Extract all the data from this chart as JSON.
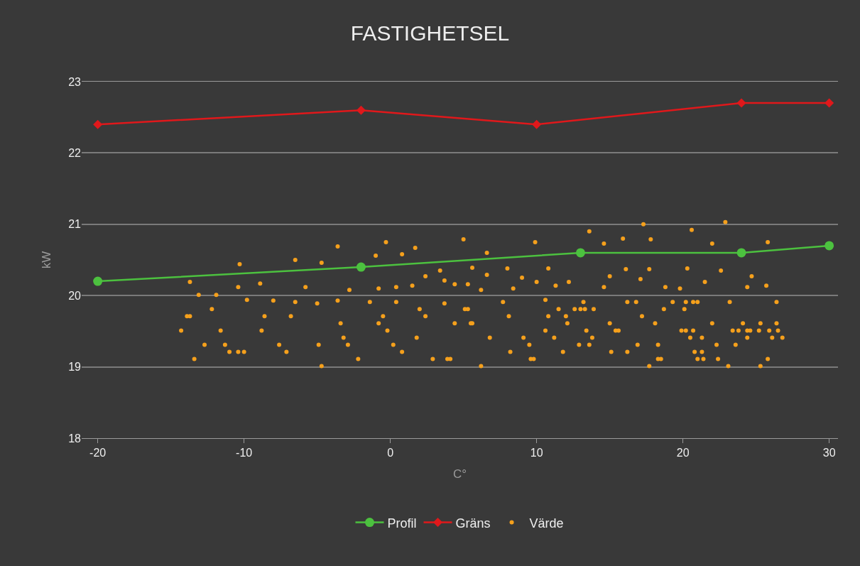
{
  "chart_data": {
    "type": "line",
    "title": "FASTIGHETSEL",
    "xlabel": "C°",
    "ylabel": "kW",
    "xlim": [
      -21.1,
      30.6
    ],
    "xticks": [
      -20,
      -10,
      0,
      10,
      20,
      30
    ],
    "ylim": [
      18,
      23
    ],
    "yticks": [
      18,
      19,
      20,
      21,
      22,
      23
    ],
    "grid": "y",
    "legend": "bottom",
    "series": [
      {
        "name": "Profil",
        "color": "#4cc13f",
        "marker": "circle",
        "x": [
          -20,
          -2,
          13,
          24,
          30
        ],
        "values": [
          20.2,
          20.4,
          20.6,
          20.6,
          20.7
        ]
      },
      {
        "name": "Gräns",
        "color": "#e0181b",
        "marker": "diamond",
        "x": [
          -20,
          -2,
          10,
          24,
          30
        ],
        "values": [
          22.4,
          22.6,
          22.4,
          22.7,
          22.7
        ]
      },
      {
        "name": "Värde",
        "type": "scatter",
        "color": "#f5a01c",
        "marker": "circle",
        "x": [
          -6.5,
          -4.7,
          -10.3,
          -13.7,
          -10.4,
          -8.9,
          -5.8,
          -13.1,
          -11.9,
          -9.8,
          -8.0,
          -6.5,
          -5.0,
          -12.2,
          -13.9,
          -13.7,
          -8.6,
          -6.8,
          -14.3,
          -11.6,
          -8.8,
          -12.7,
          -11.3,
          -7.6,
          -4.9,
          -11.0,
          -10.4,
          -10.0,
          -7.1,
          -13.4,
          -4.7,
          -3.6,
          -0.3,
          5.0,
          -1.0,
          0.8,
          1.7,
          6.6,
          3.4,
          5.6,
          6.6,
          2.4,
          3.7,
          4.4,
          5.3,
          6.2,
          -2.8,
          -0.8,
          0.4,
          1.5,
          -3.6,
          -1.4,
          0.4,
          3.7,
          2.0,
          5.1,
          5.3,
          -0.5,
          2.4,
          -3.4,
          -0.8,
          4.4,
          5.5,
          5.6,
          -0.2,
          -3.2,
          1.8,
          6.8,
          -2.9,
          0.2,
          0.8,
          -2.2,
          2.9,
          3.9,
          4.1,
          6.2,
          9.9,
          13.6,
          14.6,
          15.9,
          17.3,
          8.0,
          10.8,
          9.0,
          10.0,
          11.3,
          12.2,
          14.6,
          15.0,
          16.1,
          17.1,
          8.4,
          7.7,
          10.6,
          13.2,
          16.2,
          16.8,
          11.5,
          12.6,
          13.0,
          13.3,
          13.9,
          8.1,
          10.8,
          12.0,
          17.2,
          12.1,
          15.0,
          10.6,
          13.4,
          15.4,
          15.6,
          9.1,
          11.2,
          13.8,
          9.5,
          12.9,
          13.6,
          16.9,
          8.2,
          11.8,
          15.1,
          16.2,
          9.6,
          9.8,
          22.9,
          20.6,
          17.8,
          22.0,
          25.8,
          17.7,
          20.3,
          22.6,
          24.7,
          21.5,
          18.8,
          19.8,
          24.4,
          25.7,
          19.3,
          20.2,
          20.7,
          21.0,
          23.2,
          26.4,
          18.7,
          20.1,
          18.1,
          22.0,
          24.1,
          25.3,
          26.4,
          19.9,
          20.2,
          20.7,
          23.4,
          23.8,
          24.4,
          24.6,
          25.2,
          25.9,
          26.5,
          20.5,
          21.3,
          24.4,
          26.1,
          26.8,
          18.3,
          22.3,
          23.6,
          20.8,
          21.3,
          18.3,
          18.5,
          21.0,
          21.4,
          22.4,
          25.8,
          17.7,
          23.1,
          25.3
        ],
        "values": [
          20.5,
          20.46,
          20.44,
          20.19,
          20.12,
          20.17,
          20.12,
          20.01,
          20.01,
          19.94,
          19.93,
          19.91,
          19.89,
          19.81,
          19.71,
          19.71,
          19.71,
          19.71,
          19.51,
          19.51,
          19.51,
          19.31,
          19.31,
          19.31,
          19.31,
          19.21,
          19.21,
          19.21,
          19.21,
          19.11,
          19.01,
          20.69,
          20.75,
          20.79,
          20.56,
          20.58,
          20.67,
          20.6,
          20.35,
          20.39,
          20.29,
          20.27,
          20.21,
          20.16,
          20.16,
          20.08,
          20.08,
          20.1,
          20.12,
          20.14,
          19.93,
          19.91,
          19.91,
          19.89,
          19.81,
          19.81,
          19.81,
          19.71,
          19.71,
          19.61,
          19.61,
          19.61,
          19.61,
          19.61,
          19.51,
          19.41,
          19.41,
          19.41,
          19.31,
          19.31,
          19.21,
          19.11,
          19.11,
          19.11,
          19.11,
          19.01,
          20.75,
          20.9,
          20.73,
          20.8,
          21.0,
          20.38,
          20.38,
          20.25,
          20.19,
          20.14,
          20.19,
          20.12,
          20.27,
          20.37,
          20.23,
          20.1,
          19.91,
          19.94,
          19.91,
          19.91,
          19.91,
          19.81,
          19.81,
          19.81,
          19.81,
          19.81,
          19.71,
          19.71,
          19.71,
          19.71,
          19.61,
          19.61,
          19.51,
          19.51,
          19.51,
          19.51,
          19.41,
          19.41,
          19.41,
          19.31,
          19.31,
          19.31,
          19.31,
          19.21,
          19.21,
          19.21,
          19.21,
          19.11,
          19.11,
          21.03,
          20.92,
          20.79,
          20.73,
          20.75,
          20.37,
          20.38,
          20.35,
          20.27,
          20.19,
          20.12,
          20.1,
          20.12,
          20.14,
          19.91,
          19.91,
          19.91,
          19.91,
          19.91,
          19.91,
          19.81,
          19.81,
          19.61,
          19.61,
          19.61,
          19.61,
          19.61,
          19.51,
          19.51,
          19.51,
          19.51,
          19.51,
          19.51,
          19.51,
          19.51,
          19.51,
          19.51,
          19.41,
          19.41,
          19.41,
          19.41,
          19.41,
          19.31,
          19.31,
          19.31,
          19.21,
          19.21,
          19.11,
          19.11,
          19.11,
          19.11,
          19.11,
          19.11,
          19.01,
          19.01,
          19.01
        ]
      }
    ]
  }
}
